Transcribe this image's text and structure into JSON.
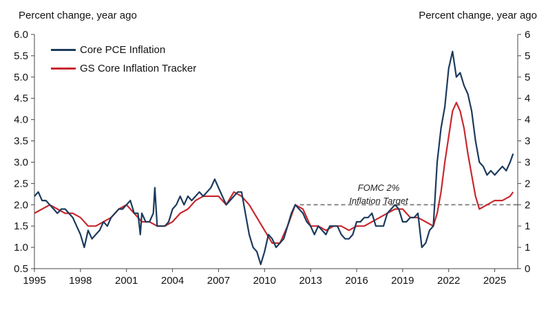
{
  "chart_data": {
    "type": "line",
    "title": "",
    "ylabel_left": "Percent change, year ago",
    "ylabel_right": "Percent change, year ago",
    "xlim": [
      1995.0,
      2026.5
    ],
    "ylim": [
      0.5,
      6.0
    ],
    "xticks": [
      1995,
      1998,
      2001,
      2004,
      2007,
      2010,
      2013,
      2016,
      2019,
      2022,
      2025
    ],
    "xtick_labels": [
      "1995",
      "1998",
      "2001",
      "2004",
      "2007",
      "2010",
      "2013",
      "2016",
      "2019",
      "2022",
      "2025"
    ],
    "yticks_left": [
      "0.5",
      "1.0",
      "1.5",
      "2.0",
      "2.5",
      "3.0",
      "3.5",
      "4.0",
      "4.5",
      "5.0",
      "5.5",
      "6.0"
    ],
    "yticks_right": [
      "0",
      "1",
      "1",
      "2",
      "2",
      "3",
      "3",
      "4",
      "4",
      "5",
      "5",
      "6"
    ],
    "legend_position": "top-left",
    "grid": false,
    "reference_line": {
      "y": 2.0,
      "style": "dashed",
      "color": "#888888"
    },
    "annotation": [
      "FOMC 2%",
      "Inflation Target"
    ],
    "series": [
      {
        "name": "Core PCE Inflation",
        "color": "#1b3a5c",
        "x": [
          1995.0,
          1995.25,
          1995.5,
          1995.75,
          1996.0,
          1996.25,
          1996.5,
          1996.75,
          1997.0,
          1997.25,
          1997.5,
          1997.75,
          1998.0,
          1998.25,
          1998.5,
          1998.75,
          1999.0,
          1999.25,
          1999.5,
          1999.75,
          2000.0,
          2000.25,
          2000.5,
          2000.75,
          2001.0,
          2001.25,
          2001.5,
          2001.75,
          2001.9,
          2002.0,
          2002.25,
          2002.5,
          2002.75,
          2002.85,
          2003.0,
          2003.25,
          2003.5,
          2003.75,
          2004.0,
          2004.25,
          2004.5,
          2004.75,
          2005.0,
          2005.25,
          2005.5,
          2005.75,
          2006.0,
          2006.25,
          2006.5,
          2006.75,
          2007.0,
          2007.25,
          2007.5,
          2007.75,
          2008.0,
          2008.25,
          2008.5,
          2008.75,
          2009.0,
          2009.25,
          2009.5,
          2009.75,
          2010.0,
          2010.25,
          2010.5,
          2010.75,
          2011.0,
          2011.25,
          2011.5,
          2011.75,
          2012.0,
          2012.25,
          2012.5,
          2012.75,
          2013.0,
          2013.25,
          2013.5,
          2013.75,
          2014.0,
          2014.25,
          2014.5,
          2014.75,
          2015.0,
          2015.25,
          2015.5,
          2015.75,
          2016.0,
          2016.25,
          2016.5,
          2016.75,
          2017.0,
          2017.25,
          2017.5,
          2017.75,
          2018.0,
          2018.25,
          2018.5,
          2018.75,
          2019.0,
          2019.25,
          2019.5,
          2019.75,
          2020.0,
          2020.25,
          2020.5,
          2020.75,
          2021.0,
          2021.25,
          2021.5,
          2021.75,
          2022.0,
          2022.25,
          2022.5,
          2022.75,
          2023.0,
          2023.25,
          2023.5,
          2023.75,
          2024.0,
          2024.25,
          2024.5,
          2024.75,
          2025.0,
          2025.25,
          2025.5,
          2025.75,
          2026.0,
          2026.2
        ],
        "y": [
          2.2,
          2.3,
          2.1,
          2.1,
          2.0,
          1.9,
          1.8,
          1.9,
          1.9,
          1.8,
          1.7,
          1.5,
          1.3,
          1.0,
          1.4,
          1.2,
          1.3,
          1.4,
          1.6,
          1.5,
          1.7,
          1.8,
          1.9,
          1.9,
          2.0,
          2.1,
          1.8,
          1.8,
          1.3,
          1.8,
          1.6,
          1.6,
          1.8,
          2.4,
          1.5,
          1.5,
          1.5,
          1.6,
          1.9,
          2.0,
          2.2,
          2.0,
          2.2,
          2.1,
          2.2,
          2.3,
          2.2,
          2.3,
          2.4,
          2.6,
          2.4,
          2.2,
          2.0,
          2.1,
          2.2,
          2.3,
          2.3,
          1.8,
          1.3,
          1.0,
          0.9,
          0.6,
          0.9,
          1.3,
          1.2,
          1.0,
          1.1,
          1.2,
          1.5,
          1.8,
          2.0,
          1.9,
          1.8,
          1.6,
          1.5,
          1.3,
          1.5,
          1.4,
          1.3,
          1.5,
          1.5,
          1.5,
          1.3,
          1.2,
          1.2,
          1.3,
          1.6,
          1.6,
          1.7,
          1.7,
          1.8,
          1.5,
          1.5,
          1.5,
          1.8,
          1.9,
          2.0,
          1.9,
          1.6,
          1.6,
          1.7,
          1.7,
          1.8,
          1.0,
          1.1,
          1.4,
          1.5,
          3.0,
          3.8,
          4.3,
          5.2,
          5.6,
          5.0,
          5.1,
          4.8,
          4.6,
          4.2,
          3.5,
          3.0,
          2.9,
          2.7,
          2.8,
          2.7,
          2.8,
          2.9,
          2.8,
          3.0,
          3.2
        ]
      },
      {
        "name": "GS Core Inflation Tracker",
        "color": "#c8282e",
        "x": [
          1995.0,
          1995.5,
          1996.0,
          1996.5,
          1997.0,
          1997.5,
          1998.0,
          1998.5,
          1999.0,
          1999.5,
          2000.0,
          2000.5,
          2001.0,
          2001.5,
          2002.0,
          2002.5,
          2003.0,
          2003.5,
          2004.0,
          2004.5,
          2005.0,
          2005.5,
          2006.0,
          2006.5,
          2007.0,
          2007.5,
          2008.0,
          2008.5,
          2009.0,
          2009.5,
          2010.0,
          2010.5,
          2011.0,
          2011.5,
          2012.0,
          2012.5,
          2013.0,
          2013.5,
          2014.0,
          2014.5,
          2015.0,
          2015.5,
          2016.0,
          2016.5,
          2017.0,
          2017.5,
          2018.0,
          2018.5,
          2019.0,
          2019.5,
          2020.0,
          2020.5,
          2021.0,
          2021.25,
          2021.5,
          2021.75,
          2022.0,
          2022.25,
          2022.5,
          2022.75,
          2023.0,
          2023.25,
          2023.5,
          2023.75,
          2024.0,
          2024.5,
          2025.0,
          2025.5,
          2026.0,
          2026.2
        ],
        "y": [
          1.8,
          1.9,
          2.0,
          1.9,
          1.8,
          1.8,
          1.7,
          1.5,
          1.5,
          1.6,
          1.7,
          1.9,
          2.0,
          1.8,
          1.6,
          1.6,
          1.5,
          1.5,
          1.6,
          1.8,
          1.9,
          2.1,
          2.2,
          2.2,
          2.2,
          2.0,
          2.3,
          2.2,
          2.0,
          1.7,
          1.4,
          1.1,
          1.1,
          1.5,
          2.0,
          1.9,
          1.5,
          1.5,
          1.4,
          1.5,
          1.5,
          1.4,
          1.5,
          1.5,
          1.6,
          1.7,
          1.8,
          1.9,
          1.9,
          1.7,
          1.7,
          1.6,
          1.5,
          1.8,
          2.3,
          3.0,
          3.6,
          4.2,
          4.4,
          4.2,
          3.8,
          3.2,
          2.7,
          2.2,
          1.9,
          2.0,
          2.1,
          2.1,
          2.2,
          2.3
        ]
      }
    ]
  }
}
